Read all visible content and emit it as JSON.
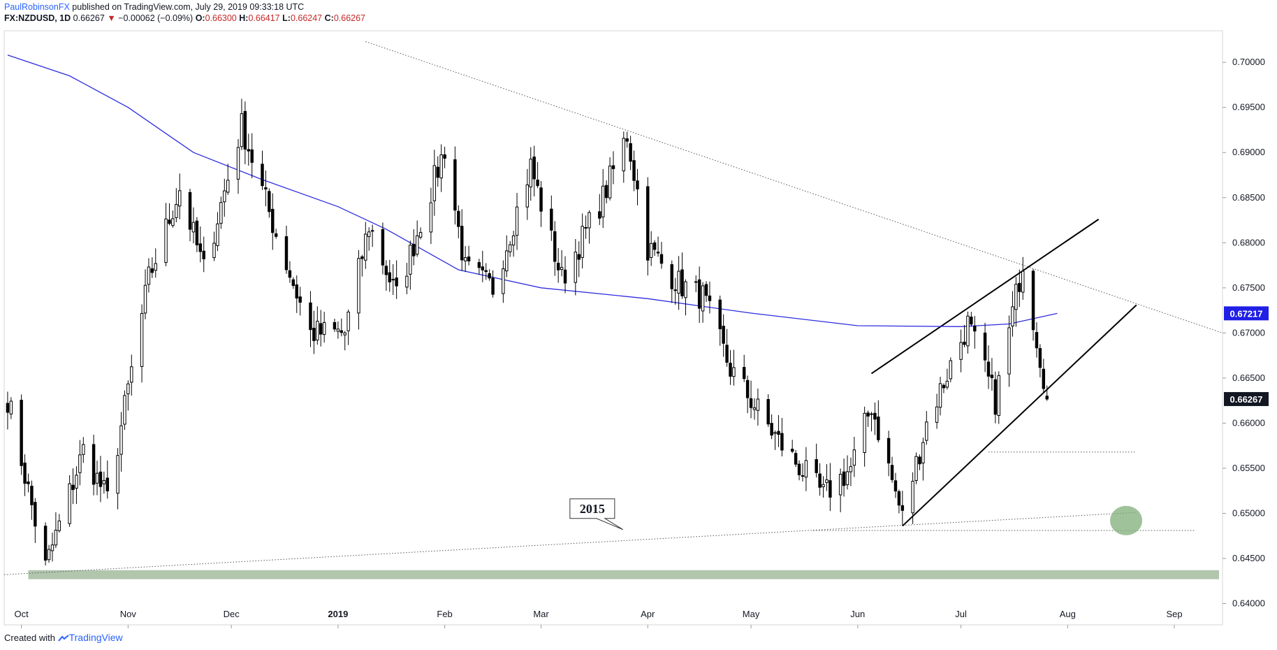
{
  "header": {
    "author": "PaulRobinsonFX",
    "published": " published on TradingView.com, July 29, 2019 09:33:18 UTC",
    "symbol": "FX:NZDUSD, 1D",
    "last": "0.66267",
    "arrow": "▼",
    "change": "−0.00062 (−0.09%)",
    "o_label": "O:",
    "o_val": "0.66300",
    "h_label": "H:",
    "h_val": "0.66417",
    "l_label": "L:",
    "l_val": "0.66247",
    "c_label": "C:",
    "c_val": "0.66267"
  },
  "footer": {
    "created": "Created with",
    "brand": "TradingView"
  },
  "colors": {
    "up": "#ffffff",
    "down": "#000000",
    "ma": "#2d2de0",
    "support": "#a9c0a4",
    "circle": "#7fae7a",
    "ma_badge": "#1f1fe6",
    "price_badge": "#131722"
  },
  "chart_data": {
    "type": "candlestick",
    "title": "",
    "xlabel": "",
    "ylabel": "",
    "ylim": [
      0.6395,
      0.7035
    ],
    "xlim": [
      "2018-09-26",
      "2019-09-15"
    ],
    "y_ticks": [
      "0.70000",
      "0.69500",
      "0.69000",
      "0.68500",
      "0.68000",
      "0.67500",
      "0.67000",
      "0.66500",
      "0.66000",
      "0.65500",
      "0.65000",
      "0.64500",
      "0.64000"
    ],
    "x_ticks": [
      {
        "date": "2018-10-01",
        "label": "Oct",
        "bold": false
      },
      {
        "date": "2018-11-01",
        "label": "Nov",
        "bold": false
      },
      {
        "date": "2018-12-01",
        "label": "Dec",
        "bold": false
      },
      {
        "date": "2019-01-01",
        "label": "2019",
        "bold": true
      },
      {
        "date": "2019-02-01",
        "label": "Feb",
        "bold": false
      },
      {
        "date": "2019-03-01",
        "label": "Mar",
        "bold": false
      },
      {
        "date": "2019-04-01",
        "label": "Apr",
        "bold": false
      },
      {
        "date": "2019-05-01",
        "label": "May",
        "bold": false
      },
      {
        "date": "2019-06-01",
        "label": "Jun",
        "bold": false
      },
      {
        "date": "2019-07-01",
        "label": "Jul",
        "bold": false
      },
      {
        "date": "2019-08-01",
        "label": "Aug",
        "bold": false
      },
      {
        "date": "2019-09-01",
        "label": "Sep",
        "bold": false
      }
    ],
    "anchors": [
      {
        "date": "2018-09-27",
        "close": 0.6628
      },
      {
        "date": "2018-10-08",
        "close": 0.644
      },
      {
        "date": "2018-10-19",
        "close": 0.657
      },
      {
        "date": "2018-10-26",
        "close": 0.6515
      },
      {
        "date": "2018-11-07",
        "close": 0.676
      },
      {
        "date": "2018-11-16",
        "close": 0.686
      },
      {
        "date": "2018-11-23",
        "close": 0.677
      },
      {
        "date": "2018-12-04",
        "close": 0.693
      },
      {
        "date": "2018-12-14",
        "close": 0.681
      },
      {
        "date": "2018-12-24",
        "close": 0.67
      },
      {
        "date": "2019-01-03",
        "close": 0.67
      },
      {
        "date": "2019-01-10",
        "close": 0.682
      },
      {
        "date": "2019-01-18",
        "close": 0.674
      },
      {
        "date": "2019-02-01",
        "close": 0.6905
      },
      {
        "date": "2019-02-07",
        "close": 0.677
      },
      {
        "date": "2019-02-15",
        "close": 0.675
      },
      {
        "date": "2019-02-26",
        "close": 0.6885
      },
      {
        "date": "2019-03-07",
        "close": 0.676
      },
      {
        "date": "2019-03-19",
        "close": 0.685
      },
      {
        "date": "2019-03-26",
        "close": 0.692
      },
      {
        "date": "2019-04-01",
        "close": 0.6795
      },
      {
        "date": "2019-04-10",
        "close": 0.6755
      },
      {
        "date": "2019-04-17",
        "close": 0.674
      },
      {
        "date": "2019-04-25",
        "close": 0.666
      },
      {
        "date": "2019-05-09",
        "close": 0.658
      },
      {
        "date": "2019-05-22",
        "close": 0.652
      },
      {
        "date": "2019-05-30",
        "close": 0.655
      },
      {
        "date": "2019-06-05",
        "close": 0.662
      },
      {
        "date": "2019-06-14",
        "close": 0.6495
      },
      {
        "date": "2019-06-21",
        "close": 0.66
      },
      {
        "date": "2019-07-03",
        "close": 0.671
      },
      {
        "date": "2019-07-11",
        "close": 0.6625
      },
      {
        "date": "2019-07-19",
        "close": 0.678
      },
      {
        "date": "2019-07-26",
        "close": 0.6633
      }
    ],
    "moving_average": [
      {
        "date": "2018-09-27",
        "value": 0.7008
      },
      {
        "date": "2018-10-15",
        "value": 0.6985
      },
      {
        "date": "2018-11-01",
        "value": 0.695
      },
      {
        "date": "2018-11-20",
        "value": 0.69
      },
      {
        "date": "2018-12-10",
        "value": 0.687
      },
      {
        "date": "2019-01-01",
        "value": 0.684
      },
      {
        "date": "2019-01-15",
        "value": 0.6815
      },
      {
        "date": "2019-02-05",
        "value": 0.677
      },
      {
        "date": "2019-03-01",
        "value": 0.675
      },
      {
        "date": "2019-04-01",
        "value": 0.6738
      },
      {
        "date": "2019-05-01",
        "value": 0.6722
      },
      {
        "date": "2019-06-01",
        "value": 0.6708
      },
      {
        "date": "2019-07-01",
        "value": 0.6707
      },
      {
        "date": "2019-07-15",
        "value": 0.671
      },
      {
        "date": "2019-07-29",
        "value": 0.67217
      }
    ],
    "trendlines": [
      {
        "style": "dotted",
        "from": {
          "date": "2019-01-09",
          "price": 0.7023
        },
        "to": {
          "date": "2019-09-15",
          "price": 0.67
        }
      },
      {
        "style": "dotted",
        "from": {
          "date": "2018-09-26",
          "price": 0.6432
        },
        "to": {
          "date": "2019-08-21",
          "price": 0.6501
        }
      },
      {
        "style": "solid",
        "from": {
          "date": "2019-06-05",
          "price": 0.6655
        },
        "to": {
          "date": "2019-08-10",
          "price": 0.6826
        }
      },
      {
        "style": "solid",
        "from": {
          "date": "2019-06-14",
          "price": 0.6486
        },
        "to": {
          "date": "2019-08-21",
          "price": 0.6731
        }
      },
      {
        "style": "dotted",
        "from": {
          "date": "2019-05-19",
          "price": 0.6481
        },
        "to": {
          "date": "2019-09-07",
          "price": 0.6481
        }
      },
      {
        "style": "dotted",
        "from": {
          "date": "2019-07-09",
          "price": 0.6568
        },
        "to": {
          "date": "2019-08-21",
          "price": 0.6568
        }
      }
    ],
    "support_zone": {
      "from_date": "2018-10-03",
      "to_date": "2019-09-14",
      "low": 0.6427,
      "high": 0.6437
    },
    "circle_marker": {
      "date": "2019-08-18",
      "price": 0.6492
    },
    "annotations": [
      {
        "text": "2015",
        "date": "2019-03-24",
        "price": 0.6468
      }
    ],
    "price_labels": [
      {
        "value": "0.67217",
        "kind": "moving_average"
      },
      {
        "value": "0.66267",
        "kind": "last_price"
      }
    ]
  }
}
